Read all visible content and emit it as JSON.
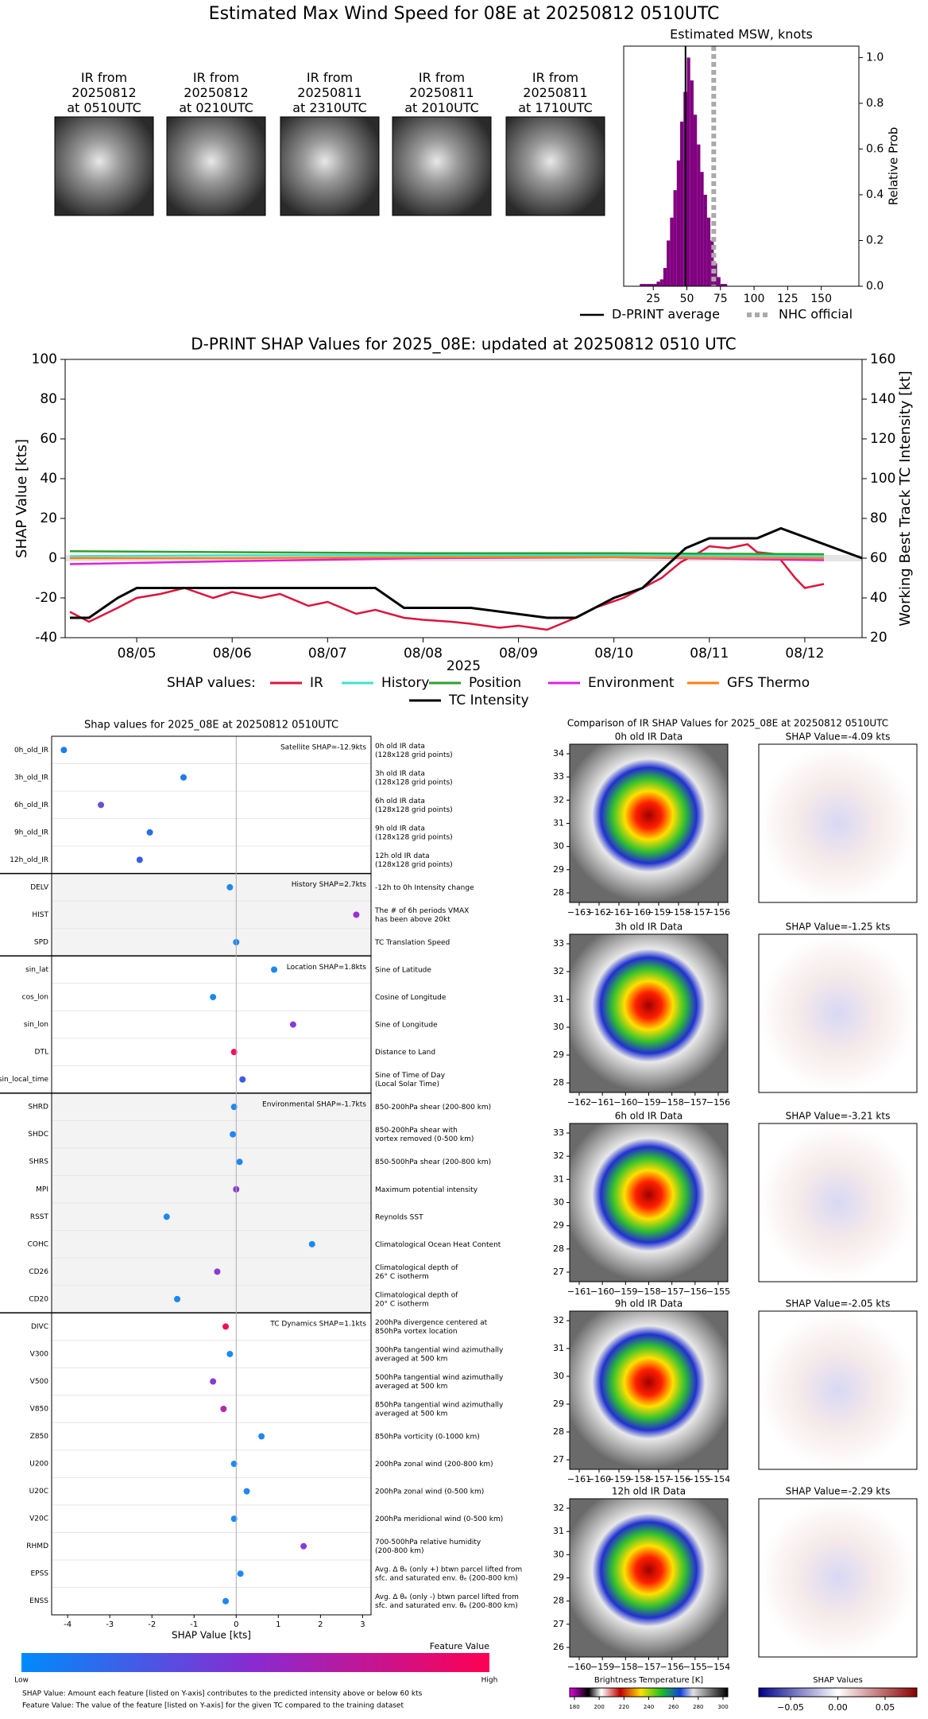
{
  "title": "Estimated Max Wind Speed for 08E at 20250812 0510UTC",
  "thumbnails": [
    {
      "label": "IR from\n20250812\nat 0510UTC"
    },
    {
      "label": "IR from\n20250812\nat 0210UTC"
    },
    {
      "label": "IR from\n20250811\nat 2310UTC"
    },
    {
      "label": "IR from\n20250811\nat 2010UTC"
    },
    {
      "label": "IR from\n20250811\nat 1710UTC"
    }
  ],
  "chart_data": [
    {
      "type": "histogram",
      "title": "Estimated MSW, knots",
      "ylabel": "Relative Prob",
      "color": "#800080",
      "bins": [
        15,
        17.5,
        20,
        22.5,
        25,
        27.5,
        30,
        32.5,
        35,
        37.5,
        40,
        42.5,
        45,
        47.5,
        50,
        52.5,
        55,
        57.5,
        60,
        62.5,
        65,
        67.5,
        70,
        72.5,
        75,
        77.5,
        80
      ],
      "values": [
        0.01,
        0.01,
        0.01,
        0.01,
        0.01,
        0.02,
        0.03,
        0.08,
        0.2,
        0.3,
        0.42,
        0.55,
        0.72,
        0.85,
        1.0,
        0.9,
        0.75,
        0.62,
        0.5,
        0.4,
        0.3,
        0.2,
        0.1,
        0.04,
        0.01,
        0.01
      ],
      "xlim": [
        3,
        178
      ],
      "xticks": [
        25,
        50,
        75,
        100,
        125,
        150
      ],
      "ylim": [
        0,
        1.05
      ],
      "yticks": [
        {
          "value": 0,
          "label": "0.0"
        },
        {
          "value": 0.2,
          "label": "0.2"
        },
        {
          "value": 0.4,
          "label": "0.4"
        },
        {
          "value": 0.6,
          "label": "0.6"
        },
        {
          "value": 0.8,
          "label": "0.8"
        },
        {
          "value": 1,
          "label": "1.0"
        }
      ],
      "lines": [
        {
          "name": "D-PRINT average",
          "value": 49,
          "color": "#000000",
          "style": "solid"
        },
        {
          "name": "NHC official",
          "value": 70,
          "color": "#aaaaaa",
          "style": "dotted"
        }
      ]
    },
    {
      "type": "line",
      "title": "D-PRINT SHAP Values for 2025_08E: updated at 20250812 0510 UTC",
      "ylabel": "SHAP Value [kts]",
      "y2label": "Working Best Track TC Intensity [kt]",
      "xlabel": "2025",
      "legend_title": "SHAP values:",
      "xlim": [
        4.25,
        12.6
      ],
      "xticks": [
        {
          "value": 5,
          "label": "08/05"
        },
        {
          "value": 6,
          "label": "08/06"
        },
        {
          "value": 7,
          "label": "08/07"
        },
        {
          "value": 8,
          "label": "08/08"
        },
        {
          "value": 9,
          "label": "08/09"
        },
        {
          "value": 10,
          "label": "08/10"
        },
        {
          "value": 11,
          "label": "08/11"
        },
        {
          "value": 12,
          "label": "08/12"
        }
      ],
      "ylim": [
        -40,
        100
      ],
      "yticks": [
        -40,
        -20,
        0,
        20,
        40,
        60,
        80,
        100
      ],
      "y2lim": [
        20,
        160
      ],
      "y2ticks": [
        20,
        40,
        60,
        80,
        100,
        120,
        140,
        160
      ],
      "series": [
        {
          "name": "IR",
          "color": "#dc143c",
          "x": [
            4.3,
            4.5,
            4.8,
            5.0,
            5.25,
            5.5,
            5.8,
            6.0,
            6.3,
            6.5,
            6.8,
            7.0,
            7.3,
            7.5,
            7.8,
            8.0,
            8.3,
            8.5,
            8.8,
            9.0,
            9.3,
            9.6,
            9.8,
            10.1,
            10.3,
            10.5,
            10.7,
            10.9,
            11.0,
            11.2,
            11.4,
            11.5,
            11.7,
            11.9,
            12.0,
            12.2
          ],
          "values": [
            -27,
            -32,
            -25,
            -20,
            -18,
            -15,
            -20,
            -17,
            -20,
            -18,
            -24,
            -22,
            -28,
            -26,
            -30,
            -31,
            -32,
            -33,
            -35,
            -34,
            -36,
            -30,
            -25,
            -20,
            -15,
            -10,
            -2,
            3,
            6,
            5,
            7,
            3,
            2,
            -10,
            -15,
            -13
          ]
        },
        {
          "name": "History",
          "color": "#40e0d0",
          "x": [
            4.3,
            6.0,
            8.0,
            10.0,
            12.2
          ],
          "values": [
            1,
            1.5,
            1.5,
            1.5,
            1
          ]
        },
        {
          "name": "Position",
          "color": "#2ca02c",
          "x": [
            4.3,
            6.0,
            8.0,
            10.0,
            12.2
          ],
          "values": [
            3.5,
            3,
            2.5,
            2.5,
            2
          ]
        },
        {
          "name": "Environment",
          "color": "#e020e0",
          "x": [
            4.3,
            6.0,
            8.0,
            10.0,
            12.2
          ],
          "values": [
            -3,
            -1.5,
            0,
            0.5,
            -1
          ]
        },
        {
          "name": "GFS Thermo",
          "color": "#ff7f0e",
          "x": [
            4.3,
            6.0,
            8.0,
            10.0,
            12.2
          ],
          "values": [
            0,
            0,
            0.5,
            0.5,
            0
          ]
        },
        {
          "name": "TC Intensity",
          "color": "#000000",
          "axis": "y2",
          "x": [
            4.3,
            4.5,
            4.8,
            5.0,
            7.5,
            7.8,
            8.5,
            9.3,
            9.6,
            10.0,
            10.3,
            10.75,
            11.0,
            11.5,
            11.75,
            12.6
          ],
          "values": [
            30,
            30,
            40,
            45,
            45,
            35,
            35,
            30,
            30,
            40,
            45,
            65,
            70,
            70,
            75,
            60
          ]
        }
      ]
    },
    {
      "type": "dot",
      "title": "Shap values for 2025_08E at 20250812 0510UTC",
      "xlabel": "SHAP Value [kts]",
      "xlim": [
        -4.38,
        3.2
      ],
      "xticks": [
        -4,
        -3,
        -2,
        -1,
        0,
        1,
        2,
        3
      ],
      "groups": [
        {
          "label": "Satellite SHAP=-12.9kts",
          "shaded": false,
          "features": [
            {
              "name": "0h_old_IR",
              "value": -4.09,
              "color": "#1e7cf2",
              "description": "0h old IR data\n(128x128 grid points)"
            },
            {
              "name": "3h_old_IR",
              "value": -1.25,
              "color": "#1e7cf2",
              "description": "3h old IR data\n(128x128 grid points)"
            },
            {
              "name": "6h_old_IR",
              "value": -3.21,
              "color": "#6a4fd8",
              "description": "6h old IR data\n(128x128 grid points)"
            },
            {
              "name": "9h_old_IR",
              "value": -2.05,
              "color": "#2a6de8",
              "description": "9h old IR data\n(128x128 grid points)"
            },
            {
              "name": "12h_old_IR",
              "value": -2.29,
              "color": "#3a5ee0",
              "description": "12h old IR data\n(128x128 grid points)"
            }
          ]
        },
        {
          "label": "History SHAP=2.7kts",
          "shaded": true,
          "features": [
            {
              "name": "DELV",
              "value": -0.15,
              "color": "#1e88f2",
              "description": "-12h to 0h Intensity change"
            },
            {
              "name": "HIST",
              "value": 2.85,
              "color": "#9b30d0",
              "description": "The # of 6h periods VMAX\nhas been above 20kt"
            },
            {
              "name": "SPD",
              "value": 0.0,
              "color": "#1e88f2",
              "description": "TC Translation Speed"
            }
          ]
        },
        {
          "label": "Location SHAP=1.8kts",
          "shaded": false,
          "features": [
            {
              "name": "sin_lat",
              "value": 0.9,
              "color": "#1e88f2",
              "description": "Sine of Latitude"
            },
            {
              "name": "cos_lon",
              "value": -0.55,
              "color": "#1e88f2",
              "description": "Cosine of Longitude"
            },
            {
              "name": "sin_lon",
              "value": 1.35,
              "color": "#8a3ad8",
              "description": "Sine of Longitude"
            },
            {
              "name": "DTL",
              "value": -0.05,
              "color": "#f0105a",
              "description": "Distance to Land"
            },
            {
              "name": "sin_local_time",
              "value": 0.15,
              "color": "#3a5ee0",
              "description": "Sine of Time of Day\n(Local Solar Time)"
            }
          ]
        },
        {
          "label": "Environmental SHAP=-1.7kts",
          "shaded": true,
          "features": [
            {
              "name": "SHRD",
              "value": -0.05,
              "color": "#1e88f2",
              "description": "850-200hPa shear (200-800 km)"
            },
            {
              "name": "SHDC",
              "value": -0.08,
              "color": "#1e88f2",
              "description": "850-200hPa shear with\nvortex removed (0-500 km)"
            },
            {
              "name": "SHRS",
              "value": 0.08,
              "color": "#1e88f2",
              "description": "850-500hPa shear (200-800 km)"
            },
            {
              "name": "MPI",
              "value": 0.0,
              "color": "#8a3ad8",
              "description": "Maximum potential intensity"
            },
            {
              "name": "RSST",
              "value": -1.65,
              "color": "#1e88f2",
              "description": "Reynolds SST"
            },
            {
              "name": "COHC",
              "value": 1.8,
              "color": "#1e88f2",
              "description": "Climatological Ocean Heat Content"
            },
            {
              "name": "CD26",
              "value": -0.45,
              "color": "#8a3ad8",
              "description": "Climatological depth of\n26° C isotherm"
            },
            {
              "name": "CD20",
              "value": -1.4,
              "color": "#1e88f2",
              "description": "Climatological depth of\n20° C isotherm"
            }
          ]
        },
        {
          "label": "TC Dynamics SHAP=1.1kts",
          "shaded": false,
          "features": [
            {
              "name": "DIVC",
              "value": -0.25,
              "color": "#f01050",
              "description": "200hPa divergence centered at\n850hPa vortex location"
            },
            {
              "name": "V300",
              "value": -0.15,
              "color": "#1e88f2",
              "description": "300hPa tangential wind azimuthally\naveraged at 500 km"
            },
            {
              "name": "V500",
              "value": -0.55,
              "color": "#8a3ad8",
              "description": "500hPa tangential wind azimuthally\naveraged at 500 km"
            },
            {
              "name": "V850",
              "value": -0.3,
              "color": "#b02ab0",
              "description": "850hPa tangential wind azimuthally\naveraged at 500 km"
            },
            {
              "name": "Z850",
              "value": 0.6,
              "color": "#1e88f2",
              "description": "850hPa vorticity (0-1000 km)"
            },
            {
              "name": "U200",
              "value": -0.05,
              "color": "#1e88f2",
              "description": "200hPa zonal wind (200-800 km)"
            },
            {
              "name": "U20C",
              "value": 0.25,
              "color": "#1e88f2",
              "description": "200hPa zonal wind (0-500 km)"
            },
            {
              "name": "V20C",
              "value": -0.05,
              "color": "#1e88f2",
              "description": "200hPa meridional wind (0-500 km)"
            },
            {
              "name": "RHMD",
              "value": 1.6,
              "color": "#8a3ad8",
              "description": "700-500hPa relative humidity\n(200-800 km)"
            },
            {
              "name": "EPSS",
              "value": 0.1,
              "color": "#1e88f2",
              "description": "Avg. Δ θₑ (only +) btwn parcel lifted from\nsfc. and saturated env. θₑ (200-800 km)"
            },
            {
              "name": "ENSS",
              "value": -0.25,
              "color": "#1e88f2",
              "description": "Avg. Δ θₑ (only -) btwn parcel lifted from\nsfc. and saturated env. θₑ (200-800 km)"
            }
          ]
        }
      ]
    }
  ],
  "feature_colorbar": {
    "label": "Feature Value",
    "low": "Low",
    "high": "High"
  },
  "footnotes": [
    "SHAP Value: Amount each feature [listed on Y-axis] contributes to the predicted intensity above or below 60 kts",
    "Feature Value: The value of the feature [listed on Y-axis] for the given TC compared to the training dataset"
  ],
  "ir_comparison": {
    "title": "Comparison of IR SHAP Values for 2025_08E at 20250812 0510UTC",
    "panels": [
      {
        "title": "0h old IR Data",
        "shap_title": "SHAP Value=-4.09 kts",
        "xticks": [
          "−163",
          "−162",
          "−161",
          "−160",
          "−159",
          "−158",
          "−157",
          "−156"
        ],
        "yticks": [
          "28",
          "29",
          "30",
          "31",
          "32",
          "33",
          "34"
        ]
      },
      {
        "title": "3h old IR Data",
        "shap_title": "SHAP Value=-1.25 kts",
        "xticks": [
          "−162",
          "−161",
          "−160",
          "−159",
          "−158",
          "−157",
          "−156"
        ],
        "yticks": [
          "28",
          "29",
          "30",
          "31",
          "32",
          "33"
        ]
      },
      {
        "title": "6h old IR Data",
        "shap_title": "SHAP Value=-3.21 kts",
        "xticks": [
          "−161",
          "−160",
          "−159",
          "−158",
          "−157",
          "−156",
          "−155"
        ],
        "yticks": [
          "27",
          "28",
          "29",
          "30",
          "31",
          "32",
          "33"
        ]
      },
      {
        "title": "9h old IR Data",
        "shap_title": "SHAP Value=-2.05 kts",
        "xticks": [
          "−161",
          "−160",
          "−159",
          "−158",
          "−157",
          "−156",
          "−155",
          "−154"
        ],
        "yticks": [
          "27",
          "28",
          "29",
          "30",
          "31",
          "32"
        ]
      },
      {
        "title": "12h old IR Data",
        "shap_title": "SHAP Value=-2.29 kts",
        "xticks": [
          "−160",
          "−159",
          "−158",
          "−157",
          "−156",
          "−155",
          "−154"
        ],
        "yticks": [
          "26",
          "27",
          "28",
          "29",
          "30",
          "31",
          "32"
        ]
      }
    ],
    "brightness_colorbar": {
      "label": "Brightness Temperature [K]",
      "ticks": [
        180,
        200,
        220,
        240,
        260,
        280,
        300
      ]
    },
    "shap_colorbar": {
      "label": "SHAP Values",
      "ticks": [
        "−0.05",
        "0.00",
        "0.05"
      ]
    }
  }
}
